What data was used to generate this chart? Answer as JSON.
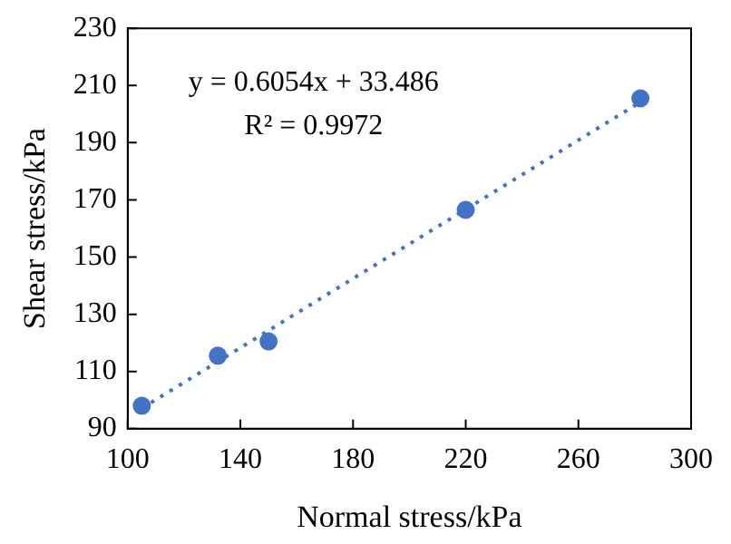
{
  "chart_data": {
    "type": "scatter",
    "xlabel": "Normal stress/kPa",
    "ylabel": "Shear stress/kPa",
    "x": [
      105,
      132,
      150,
      220,
      282
    ],
    "series": [
      {
        "type": "scatter",
        "color": "#4472c4",
        "values": [
          98,
          115.5,
          120.5,
          166.5,
          205.5
        ],
        "marker": "circle"
      },
      {
        "type": "line",
        "color": "#4472c4",
        "x": [
          105,
          282
        ],
        "values": [
          97.1,
          204.2
        ],
        "line_style": "dotted",
        "marker": "none"
      }
    ],
    "annotations": [
      "y = 0.6054x + 33.486",
      "R² = 0.9972"
    ],
    "xlim": [
      100,
      300
    ],
    "xticks": [
      100,
      140,
      180,
      220,
      260,
      300
    ],
    "ylim": [
      90,
      230
    ],
    "yticks": [
      90,
      110,
      130,
      150,
      170,
      190,
      210,
      230
    ],
    "grid": false,
    "legend": false
  }
}
